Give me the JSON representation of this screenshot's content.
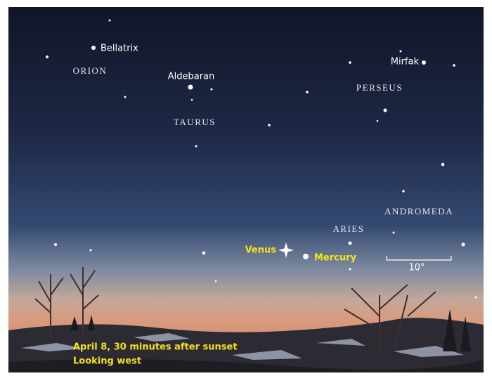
{
  "stars": [
    "Bellatrix",
    "Aldebaran",
    "Mirfak"
  ],
  "constellations": [
    "ORION",
    "TAURUS",
    "PERSEUS",
    "ANDROMEDA",
    "ARIES"
  ],
  "planets": [
    "Venus",
    "Mercury"
  ],
  "scale_label": "10°",
  "caption": [
    "April 8, 30 minutes after sunset",
    "Looking west"
  ]
}
